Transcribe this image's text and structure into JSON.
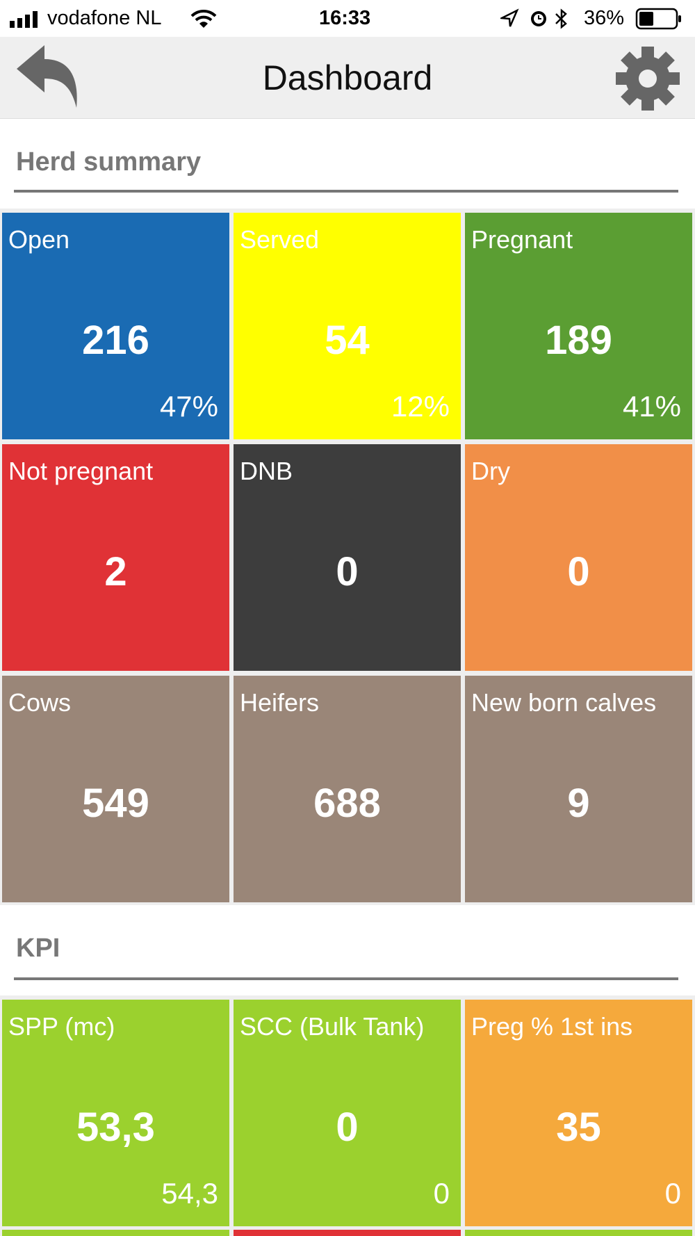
{
  "status_bar": {
    "carrier": "vodafone NL",
    "time": "16:33",
    "battery": "36%"
  },
  "header": {
    "title": "Dashboard"
  },
  "sections": [
    {
      "title": "Herd summary",
      "tiles": [
        {
          "label": "Open",
          "value": "216",
          "sub": "47%",
          "color": "#1a6bb3"
        },
        {
          "label": "Served",
          "value": "54",
          "sub": "12%",
          "color": "#ffff00"
        },
        {
          "label": "Pregnant",
          "value": "189",
          "sub": "41%",
          "color": "#5b9e33"
        },
        {
          "label": "Not pregnant",
          "value": "2",
          "color": "#e03236"
        },
        {
          "label": "DNB",
          "value": "0",
          "color": "#3d3d3d"
        },
        {
          "label": "Dry",
          "value": "0",
          "color": "#f18f48"
        },
        {
          "label": "Cows",
          "value": "549",
          "color": "#9a8678"
        },
        {
          "label": "Heifers",
          "value": "688",
          "color": "#9a8678"
        },
        {
          "label": "New born calves",
          "value": "9",
          "color": "#9a8678"
        }
      ]
    },
    {
      "title": "KPI",
      "tiles": [
        {
          "label": "SPP (mc)",
          "value": "53,3",
          "sub": "54,3",
          "color": "#9bd12e"
        },
        {
          "label": "SCC (Bulk Tank)",
          "value": "0",
          "sub": "0",
          "color": "#9bd12e"
        },
        {
          "label": "Preg % 1st ins",
          "value": "35",
          "sub": "0",
          "color": "#f5a93c"
        }
      ]
    }
  ]
}
